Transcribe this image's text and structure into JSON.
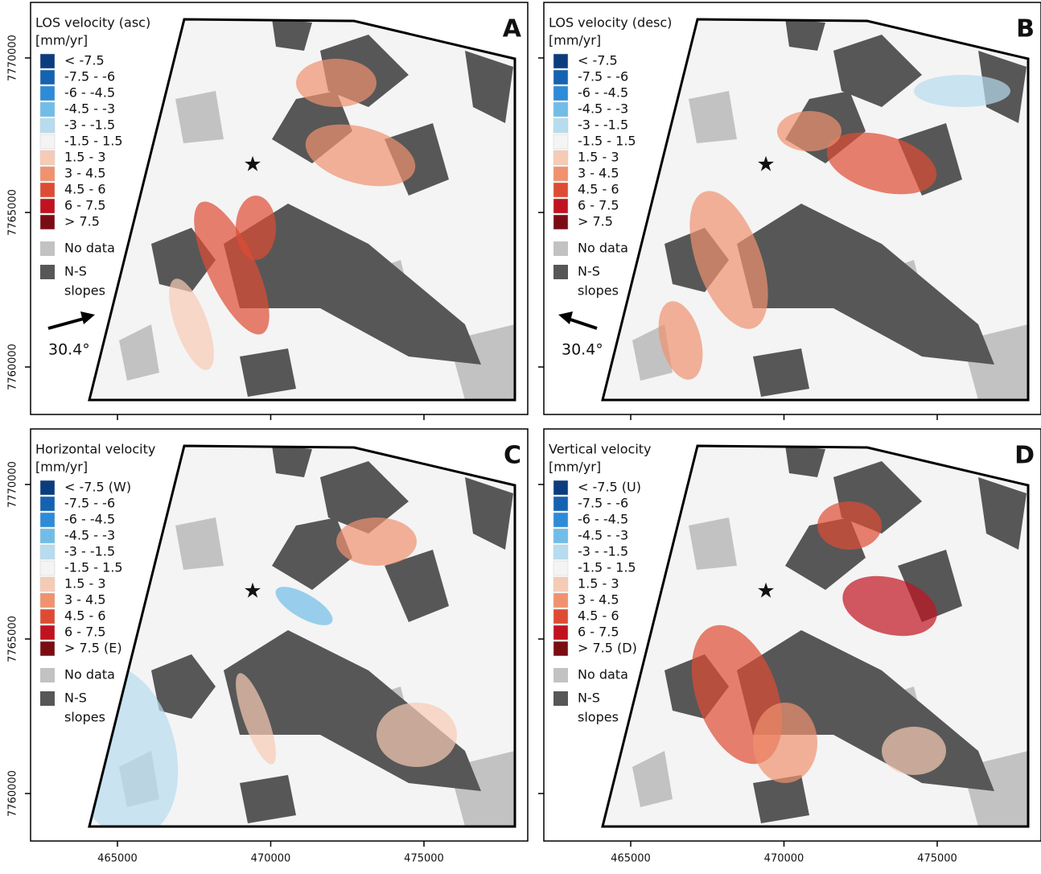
{
  "panels": [
    {
      "letter": "A",
      "title": "LOS velocity (asc)",
      "unit": "[mm/yr]",
      "classes": [
        "< -7.5",
        "-7.5 - -6",
        "-6 - -4.5",
        "-4.5 - -3",
        "-3 - -1.5",
        "-1.5 - 1.5",
        "1.5 - 3",
        "3 - 4.5",
        "4.5 - 6",
        "6 - 7.5",
        "> 7.5"
      ],
      "no_data": "No data",
      "slopes_label": [
        "N-S",
        "slopes"
      ],
      "heading": "30.4°"
    },
    {
      "letter": "B",
      "title": "LOS velocity (desc)",
      "unit": "[mm/yr]",
      "classes": [
        "< -7.5",
        "-7.5 - -6",
        "-6 - -4.5",
        "-4.5 - -3",
        "-3 - -1.5",
        "-1.5 - 1.5",
        "1.5 - 3",
        "3 - 4.5",
        "4.5 - 6",
        "6 - 7.5",
        "> 7.5"
      ],
      "no_data": "No data",
      "slopes_label": [
        "N-S",
        "slopes"
      ],
      "heading": "30.4°"
    },
    {
      "letter": "C",
      "title": "Horizontal velocity",
      "unit": "[mm/yr]",
      "classes": [
        "< -7.5 (W)",
        "-7.5 - -6",
        "-6 - -4.5",
        "-4.5 - -3",
        "-3 - -1.5",
        "-1.5 - 1.5",
        "1.5 - 3",
        "3 - 4.5",
        "4.5 - 6",
        "6 - 7.5",
        "> 7.5 (E)"
      ],
      "no_data": "No data",
      "slopes_label": [
        "N-S",
        "slopes"
      ]
    },
    {
      "letter": "D",
      "title": "Vertical velocity",
      "unit": "[mm/yr]",
      "classes": [
        "< -7.5 (U)",
        "-7.5 - -6",
        "-6 - -4.5",
        "-4.5 - -3",
        "-3 - -1.5",
        "-1.5 - 1.5",
        "1.5 - 3",
        "3 - 4.5",
        "4.5 - 6",
        "6 - 7.5",
        "> 7.5 (D)"
      ],
      "no_data": "No data",
      "slopes_label": [
        "N-S",
        "slopes"
      ]
    }
  ],
  "class_colors": [
    "#0b3c7d",
    "#1463b2",
    "#2d8bd8",
    "#70bde8",
    "#b6dcef",
    "#f4f4f4",
    "#f6cbb5",
    "#f0926f",
    "#de4b33",
    "#c1121f",
    "#7a0d14"
  ],
  "no_data_color": "#c2c2c2",
  "slopes_color": "#575757",
  "x_ticks": [
    465000,
    470000,
    475000
  ],
  "y_ticks": [
    7760000,
    7765000,
    7770000
  ]
}
